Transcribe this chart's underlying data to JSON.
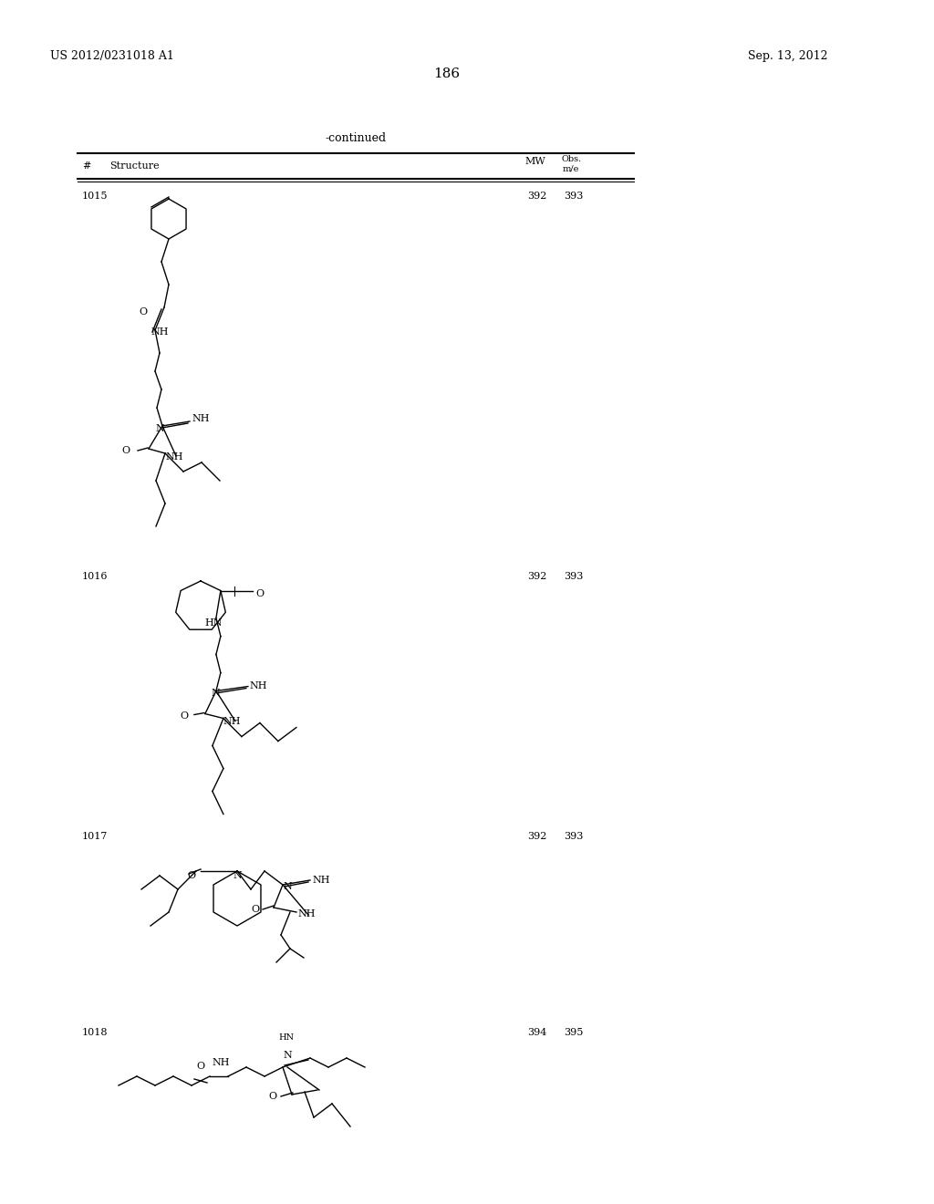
{
  "page_left_text": "US 2012/0231018 A1",
  "page_right_text": "Sep. 13, 2012",
  "page_number": "186",
  "continued_text": "-continued",
  "background_color": "#ffffff",
  "text_color": "#000000",
  "table_header": [
    "#",
    "Structure",
    "MW",
    "Obs.\nm/e"
  ],
  "compounds": [
    {
      "number": "1015",
      "mw": "392",
      "obs": "393"
    },
    {
      "number": "1016",
      "mw": "392",
      "obs": "393"
    },
    {
      "number": "1017",
      "mw": "392",
      "obs": "393"
    },
    {
      "number": "1018",
      "mw": "394",
      "obs": "395"
    }
  ]
}
